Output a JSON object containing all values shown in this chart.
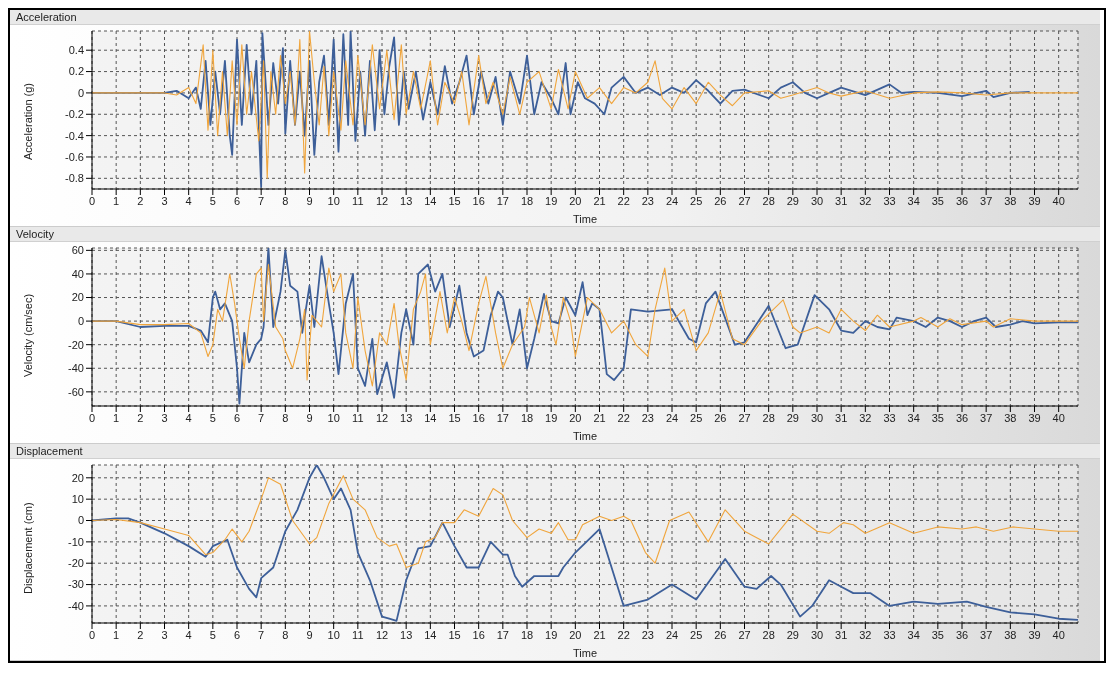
{
  "chart_data": [
    {
      "type": "line",
      "title": "Acceleration",
      "xlabel": "Time",
      "ylabel": "Acceleration (g)",
      "xlim": [
        0,
        40.8
      ],
      "xticks": [
        0,
        1,
        2,
        3,
        4,
        5,
        6,
        7,
        8,
        9,
        10,
        11,
        12,
        13,
        14,
        15,
        16,
        17,
        18,
        19,
        20,
        21,
        22,
        23,
        24,
        25,
        26,
        27,
        28,
        29,
        30,
        31,
        32,
        33,
        34,
        35,
        36,
        37,
        38,
        39,
        40
      ],
      "ylim": [
        -0.9,
        0.58
      ],
      "yticks": [
        -0.8,
        -0.6,
        -0.4,
        -0.2,
        0,
        0.2,
        0.4
      ],
      "grid": true,
      "marker": "none",
      "line_style": "solid",
      "series": [
        {
          "color": "#3d5f99",
          "x": [
            0,
            3,
            3.5,
            4,
            4.3,
            4.5,
            4.7,
            4.9,
            5.1,
            5.3,
            5.5,
            5.7,
            5.8,
            6,
            6.2,
            6.4,
            6.6,
            6.8,
            7,
            7.05,
            7.3,
            7.5,
            7.7,
            7.9,
            8,
            8.2,
            8.4,
            8.6,
            8.8,
            9,
            9.2,
            9.4,
            9.6,
            9.8,
            10,
            10.2,
            10.4,
            10.6,
            10.7,
            10.9,
            11.1,
            11.3,
            11.5,
            11.7,
            11.9,
            12.1,
            12.3,
            12.5,
            12.7,
            12.9,
            13.1,
            13.4,
            13.7,
            14,
            14.3,
            14.6,
            14.9,
            15.2,
            15.5,
            15.8,
            16.1,
            16.4,
            16.7,
            17,
            17.3,
            17.7,
            18,
            18.3,
            18.6,
            19,
            19.3,
            19.6,
            19.8,
            20.1,
            20.4,
            20.8,
            21.2,
            21.5,
            22,
            22.5,
            23,
            23.5,
            24,
            24.5,
            25,
            25.5,
            26,
            26.5,
            27,
            28,
            28.5,
            29,
            29.5,
            30,
            30.5,
            31,
            32,
            33,
            33.5,
            34,
            35,
            36,
            37,
            37.3,
            38,
            38.8
          ],
          "values": [
            0,
            0,
            0.02,
            -0.05,
            0.05,
            -0.15,
            0.3,
            -0.3,
            0.2,
            -0.2,
            0.3,
            -0.4,
            -0.58,
            0.5,
            -0.3,
            0.45,
            -0.2,
            0.3,
            -0.88,
            0.56,
            -0.3,
            0.28,
            -0.1,
            0.42,
            -0.38,
            0.3,
            -0.3,
            0.2,
            -0.4,
            0.3,
            -0.58,
            0.1,
            0.35,
            -0.3,
            0.5,
            -0.55,
            0.55,
            -0.3,
            0.58,
            -0.45,
            0.2,
            -0.4,
            0.3,
            -0.35,
            0.4,
            -0.2,
            0.25,
            0.52,
            -0.3,
            0.2,
            -0.15,
            0.2,
            -0.25,
            0.1,
            -0.2,
            0.25,
            -0.1,
            0.1,
            0.35,
            -0.2,
            0.2,
            -0.1,
            0.15,
            -0.3,
            0.2,
            -0.1,
            0.35,
            -0.2,
            0.1,
            -0.05,
            -0.2,
            0.28,
            -0.2,
            0.1,
            -0.05,
            -0.1,
            -0.2,
            0.05,
            0.15,
            0,
            0.05,
            -0.02,
            0.05,
            0,
            0.12,
            0.02,
            -0.1,
            0.02,
            0.03,
            -0.05,
            0.05,
            0.1,
            0,
            -0.05,
            0,
            0.05,
            -0.02,
            0.08,
            0,
            0.01,
            0,
            -0.03,
            0.02,
            -0.04,
            0,
            0.01
          ]
        },
        {
          "color": "#f0a53c",
          "x": [
            0,
            3,
            3.5,
            4,
            4.3,
            4.6,
            4.8,
            5,
            5.2,
            5.4,
            5.6,
            5.8,
            6,
            6.2,
            6.4,
            6.6,
            6.9,
            7.1,
            7.25,
            7.4,
            7.6,
            7.8,
            8,
            8.2,
            8.4,
            8.6,
            8.8,
            9,
            9.2,
            9.4,
            9.6,
            9.8,
            10,
            10.3,
            10.5,
            10.8,
            11,
            11.3,
            11.6,
            11.9,
            12.2,
            12.5,
            12.8,
            13,
            13.3,
            13.6,
            14,
            14.3,
            14.6,
            15,
            15.3,
            15.6,
            16,
            16.3,
            16.6,
            17,
            17.3,
            17.7,
            18,
            18.5,
            19,
            19.3,
            19.7,
            20,
            20.5,
            21,
            21.5,
            22,
            22.5,
            23,
            23.3,
            23.6,
            24,
            24.5,
            25,
            25.5,
            26,
            26.5,
            27,
            28,
            28.5,
            29,
            30,
            30.5,
            31,
            32,
            33,
            34,
            35,
            36,
            37,
            38,
            39,
            40,
            40.8
          ],
          "values": [
            0,
            0,
            -0.02,
            0.05,
            -0.1,
            0.45,
            -0.35,
            0.4,
            -0.4,
            0.2,
            -0.4,
            0.3,
            -0.3,
            0.45,
            -0.2,
            0.2,
            -0.45,
            0.3,
            -0.8,
            0.2,
            -0.2,
            0.35,
            -0.1,
            0.2,
            -0.3,
            0.5,
            -0.75,
            0.58,
            0.1,
            -0.3,
            0.25,
            -0.4,
            0.2,
            -0.35,
            0.3,
            -0.3,
            0.35,
            -0.3,
            0.45,
            -0.15,
            0.4,
            -0.25,
            0.45,
            -0.2,
            0.2,
            -0.15,
            0.3,
            -0.3,
            0.1,
            -0.1,
            0.2,
            -0.3,
            0.35,
            -0.1,
            0.1,
            -0.2,
            0.15,
            -0.2,
            0.1,
            0.2,
            -0.15,
            0.22,
            -0.15,
            0.2,
            -0.05,
            0.05,
            -0.1,
            0.05,
            0,
            0.1,
            0.3,
            -0.05,
            -0.15,
            0.05,
            -0.1,
            0.1,
            -0.02,
            -0.12,
            0,
            0.02,
            -0.05,
            -0.02,
            0.05,
            0,
            -0.03,
            0.02,
            -0.05,
            0,
            0.01,
            0,
            -0.02,
            0,
            0,
            0,
            0
          ]
        }
      ]
    },
    {
      "type": "line",
      "title": "Velocity",
      "xlabel": "Time",
      "ylabel": "Velocity (cm/sec)",
      "xlim": [
        0,
        40.8
      ],
      "xticks": [
        0,
        1,
        2,
        3,
        4,
        5,
        6,
        7,
        8,
        9,
        10,
        11,
        12,
        13,
        14,
        15,
        16,
        17,
        18,
        19,
        20,
        21,
        22,
        23,
        24,
        25,
        26,
        27,
        28,
        29,
        30,
        31,
        32,
        33,
        34,
        35,
        36,
        37,
        38,
        39,
        40
      ],
      "ylim": [
        -72,
        62
      ],
      "yticks": [
        -60,
        -40,
        -20,
        0,
        20,
        40,
        60
      ],
      "grid": true,
      "marker": "none",
      "line_style": "solid",
      "series": [
        {
          "color": "#3d5f99",
          "x": [
            0,
            1,
            2,
            3,
            4,
            4.5,
            4.8,
            5,
            5.1,
            5.3,
            5.5,
            5.8,
            6,
            6.1,
            6.3,
            6.5,
            6.8,
            7,
            7.1,
            7.3,
            7.5,
            7.8,
            8,
            8.2,
            8.5,
            8.7,
            9,
            9.2,
            9.5,
            9.8,
            10,
            10.2,
            10.5,
            10.8,
            11,
            11.3,
            11.6,
            11.8,
            12.2,
            12.5,
            12.8,
            13,
            13.3,
            13.5,
            13.9,
            14.2,
            14.5,
            14.8,
            15.2,
            15.5,
            15.8,
            16.2,
            16.5,
            16.8,
            17,
            17.4,
            17.7,
            18,
            18.3,
            18.7,
            19,
            19.3,
            19.6,
            20,
            20.3,
            20.5,
            20.7,
            21,
            21.3,
            21.6,
            22,
            22.3,
            23,
            24,
            24.7,
            25,
            25.4,
            25.8,
            26.6,
            27,
            28,
            28.7,
            29.2,
            29.9,
            30.5,
            31,
            31.5,
            32,
            32.5,
            33,
            33.3,
            34,
            34.5,
            35,
            35.5,
            36,
            36.5,
            37,
            37.4,
            38,
            38.5,
            39,
            40,
            40.8
          ],
          "values": [
            0,
            0,
            -5,
            -4,
            -4,
            -8,
            -18,
            20,
            25,
            10,
            15,
            0,
            -40,
            -70,
            -10,
            -35,
            -20,
            -15,
            -5,
            62,
            -5,
            25,
            60,
            30,
            25,
            -10,
            30,
            -5,
            55,
            15,
            -10,
            -45,
            15,
            40,
            -40,
            -55,
            -15,
            -62,
            -35,
            -65,
            -10,
            10,
            -20,
            40,
            48,
            25,
            40,
            -5,
            30,
            -10,
            -30,
            -25,
            5,
            25,
            20,
            -20,
            10,
            -40,
            -15,
            23,
            0,
            -2,
            20,
            5,
            33,
            5,
            15,
            10,
            -45,
            -50,
            -40,
            10,
            8,
            10,
            -15,
            -18,
            15,
            25,
            -20,
            -18,
            13,
            -23,
            -20,
            22,
            10,
            -8,
            -10,
            0,
            -5,
            -7,
            3,
            0,
            -5,
            3,
            0,
            -5,
            0,
            3,
            -5,
            -3,
            0,
            -2,
            -1,
            -1
          ]
        },
        {
          "color": "#f0a53c",
          "x": [
            0,
            1,
            2,
            3,
            4,
            4.5,
            4.8,
            5,
            5.2,
            5.4,
            5.7,
            5.9,
            6.1,
            6.3,
            6.5,
            6.8,
            7,
            7.1,
            7.3,
            7.6,
            7.9,
            8,
            8.3,
            8.6,
            8.8,
            8.9,
            9.1,
            9.5,
            9.8,
            10,
            10.3,
            10.5,
            10.8,
            11,
            11.3,
            11.6,
            11.9,
            12.2,
            12.5,
            12.7,
            13,
            13.3,
            13.6,
            13.8,
            14,
            14.4,
            14.7,
            15,
            15.3,
            15.6,
            16,
            16.3,
            16.7,
            17,
            17.4,
            17.9,
            18.1,
            18.5,
            18.8,
            19,
            19.2,
            19.5,
            19.8,
            20,
            20.3,
            20.5,
            21,
            21.5,
            22,
            22.5,
            23,
            23.3,
            23.7,
            24,
            24.5,
            25,
            25.5,
            26,
            26.5,
            27,
            27.7,
            28.6,
            29,
            29.3,
            30,
            30.5,
            31,
            31.5,
            32,
            32.5,
            33,
            34,
            34.3,
            35,
            35.5,
            36,
            37,
            37.3,
            38,
            39,
            40,
            40.8
          ],
          "values": [
            0,
            0,
            -3,
            -3,
            -2,
            -10,
            -30,
            -20,
            10,
            0,
            40,
            15,
            -15,
            -40,
            0,
            40,
            45,
            0,
            48,
            -5,
            -15,
            -25,
            -40,
            -15,
            10,
            -50,
            5,
            -5,
            45,
            25,
            40,
            -10,
            -40,
            20,
            -25,
            -55,
            -10,
            -20,
            15,
            -20,
            -50,
            10,
            25,
            40,
            -20,
            25,
            -10,
            20,
            0,
            -25,
            15,
            38,
            -10,
            -40,
            -20,
            -5,
            20,
            -10,
            22,
            -5,
            -20,
            20,
            0,
            -30,
            0,
            20,
            10,
            -10,
            0,
            -20,
            -30,
            10,
            45,
            0,
            10,
            -25,
            -10,
            25,
            -15,
            -20,
            0,
            18,
            -5,
            -10,
            -5,
            -10,
            10,
            0,
            -8,
            5,
            -5,
            0,
            3,
            -5,
            2,
            -3,
            0,
            -5,
            2,
            0,
            0,
            0
          ]
        }
      ]
    },
    {
      "type": "line",
      "title": "Displacement",
      "xlabel": "Time",
      "ylabel": "Displacement (cm)",
      "xlim": [
        0,
        40.8
      ],
      "xticks": [
        0,
        1,
        2,
        3,
        4,
        5,
        6,
        7,
        8,
        9,
        10,
        11,
        12,
        13,
        14,
        15,
        16,
        17,
        18,
        19,
        20,
        21,
        22,
        23,
        24,
        25,
        26,
        27,
        28,
        29,
        30,
        31,
        32,
        33,
        34,
        35,
        36,
        37,
        38,
        39,
        40
      ],
      "ylim": [
        -48,
        26
      ],
      "yticks": [
        -40,
        -30,
        -20,
        -10,
        0,
        10,
        20
      ],
      "grid": true,
      "marker": "none",
      "line_style": "solid",
      "series": [
        {
          "color": "#3d5f99",
          "x": [
            0,
            1,
            1.5,
            2,
            3,
            4,
            4.7,
            5,
            5.6,
            6,
            6.5,
            6.8,
            7,
            7.5,
            8,
            8.5,
            9,
            9.3,
            9.6,
            10,
            10.3,
            10.7,
            11,
            11.5,
            12,
            12.3,
            12.6,
            13,
            13.5,
            14,
            14.5,
            15,
            15.5,
            16,
            16.5,
            17,
            17.2,
            17.5,
            17.8,
            18.3,
            18.9,
            19.3,
            19.5,
            20,
            21,
            21.5,
            22,
            23,
            24,
            25,
            26.2,
            27,
            27.5,
            28.1,
            28.5,
            29.3,
            29.8,
            30.5,
            31,
            31.5,
            32.2,
            33,
            34,
            35,
            36.2,
            37,
            38,
            39,
            40,
            40.8
          ],
          "values": [
            0,
            1,
            1,
            -1,
            -6,
            -12,
            -17,
            -12,
            -9,
            -22,
            -32,
            -36,
            -27,
            -22,
            -5,
            5,
            20,
            26,
            20,
            10,
            15,
            5,
            -15,
            -28,
            -45,
            -46,
            -47,
            -28,
            -13,
            -12,
            -1,
            -12,
            -22,
            -22,
            -10,
            -16,
            -16,
            -26,
            -31,
            -26,
            -26,
            -26,
            -22,
            -15,
            -4,
            -22,
            -40,
            -37,
            -30,
            -37,
            -18,
            -31,
            -32,
            -26,
            -30,
            -45,
            -40,
            -28,
            -31,
            -34,
            -34,
            -40,
            -38,
            -39,
            -38,
            -40.5,
            -43,
            -44,
            -46,
            -46.5
          ]
        },
        {
          "color": "#f0a53c",
          "x": [
            0,
            1,
            2,
            3,
            4,
            4.7,
            5,
            5.5,
            5.8,
            6.2,
            6.5,
            7,
            7.3,
            7.8,
            8.3,
            9,
            9.3,
            9.8,
            10.4,
            10.8,
            11.3,
            11.8,
            12.3,
            12.6,
            13,
            13.5,
            13.8,
            14.2,
            14.5,
            15,
            15.4,
            16,
            16.6,
            17,
            17.4,
            18,
            18.5,
            19,
            19.3,
            19.7,
            20,
            20.3,
            21,
            21.5,
            22,
            22.3,
            22.9,
            23.3,
            23.9,
            24.7,
            25.5,
            26.2,
            27,
            28,
            29,
            30,
            30.5,
            31.1,
            31.5,
            32,
            33,
            34,
            35,
            36,
            36.6,
            37.3,
            38.1,
            39,
            40,
            40.8
          ],
          "values": [
            0,
            0.5,
            -1,
            -4,
            -7,
            -16,
            -15,
            -9,
            -4,
            -10,
            -5,
            10,
            20,
            17,
            0,
            -11,
            -8,
            8,
            21,
            10,
            5,
            -8,
            -12,
            -11,
            -22,
            -20,
            -10,
            -8,
            -1,
            -1,
            5,
            2,
            15,
            12,
            0,
            -8,
            -4,
            -6,
            -1,
            -9,
            -9,
            -2,
            2,
            0,
            2,
            0,
            -15,
            -20,
            0,
            4,
            -10,
            5,
            -5,
            -11,
            3,
            -5,
            -6,
            -1,
            -2,
            -6,
            -1,
            -6,
            -3,
            -4,
            -3,
            -5,
            -3,
            -4,
            -5,
            -5
          ]
        }
      ]
    }
  ]
}
